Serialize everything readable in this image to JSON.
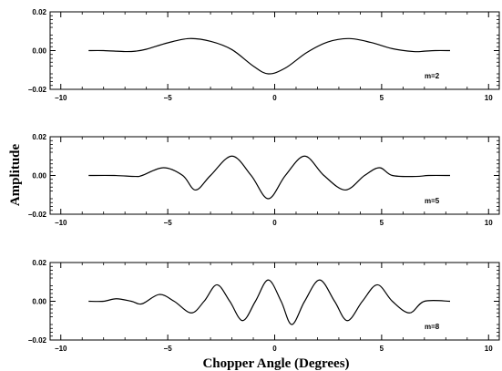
{
  "chart_data": {
    "type": "line",
    "xlabel": "Chopper Angle (Degrees)",
    "ylabel": "Amplitude",
    "xlim": [
      -10.5,
      10.5
    ],
    "xticks": [
      -10,
      -5,
      0,
      5,
      10
    ],
    "xtick_labels": [
      "−10",
      "−5",
      "0",
      "5",
      "10"
    ],
    "yticks": [
      -0.02,
      0.0,
      0.02
    ],
    "ytick_labels": [
      "−0.02",
      "0.00",
      "0.02"
    ],
    "grid": false,
    "panels": [
      {
        "label": "m=2",
        "ylim": [
          -0.02,
          0.02
        ],
        "x": [
          -8.7,
          -8.0,
          -7.0,
          -6.5,
          -6.0,
          -5.0,
          -4.0,
          -3.0,
          -2.0,
          -1.0,
          -0.3,
          0.5,
          1.5,
          2.5,
          3.5,
          4.5,
          5.5,
          6.5,
          7.0,
          7.5,
          8.2
        ],
        "y": [
          0.0,
          0.0,
          -0.0005,
          -0.0003,
          0.0007,
          0.004,
          0.0062,
          0.0048,
          0.0005,
          -0.008,
          -0.012,
          -0.009,
          -0.001,
          0.0045,
          0.0062,
          0.0042,
          0.001,
          -0.0005,
          -0.0003,
          0.0,
          0.0
        ]
      },
      {
        "label": "m=5",
        "ylim": [
          -0.02,
          0.02
        ],
        "x": [
          -8.7,
          -7.5,
          -6.5,
          -6.2,
          -5.2,
          -4.3,
          -3.7,
          -3.0,
          -2.0,
          -1.1,
          -0.3,
          0.5,
          1.4,
          2.3,
          3.3,
          4.2,
          4.9,
          5.5,
          6.6,
          7.2,
          8.2
        ],
        "y": [
          0.0,
          0.0,
          -0.0005,
          0.0,
          0.004,
          0.0,
          -0.0075,
          0.0,
          0.01,
          0.0,
          -0.012,
          0.0,
          0.01,
          0.0,
          -0.0075,
          0.0,
          0.004,
          0.0,
          -0.0005,
          0.0,
          0.0
        ]
      },
      {
        "label": "m=8",
        "ylim": [
          -0.02,
          0.02
        ],
        "x": [
          -8.7,
          -8.0,
          -7.4,
          -6.7,
          -6.2,
          -5.4,
          -4.7,
          -3.9,
          -3.3,
          -2.7,
          -2.1,
          -1.5,
          -0.9,
          -0.3,
          0.3,
          0.8,
          1.4,
          2.1,
          2.8,
          3.4,
          4.1,
          4.8,
          5.5,
          6.3,
          7.0,
          8.2
        ],
        "y": [
          0.0,
          0.0,
          0.0013,
          0.0,
          -0.0013,
          0.0035,
          0.0,
          -0.006,
          0.0,
          0.0085,
          0.0,
          -0.01,
          0.0,
          0.011,
          0.0,
          -0.012,
          0.0,
          0.011,
          0.0,
          -0.01,
          0.0,
          0.0085,
          0.0,
          -0.006,
          0.0,
          0.0
        ]
      }
    ]
  }
}
